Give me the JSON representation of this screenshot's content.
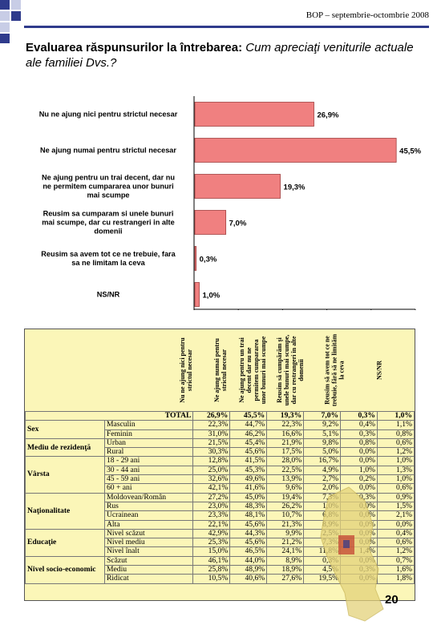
{
  "header": {
    "text": "BOP – septembrie-octombrie 2008"
  },
  "title": {
    "bold": "Evaluarea răspunsurilor la întrebarea:",
    "italic": " Cum apreciaţi veniturile actuale ale familiei Dvs.?"
  },
  "chart_data": {
    "type": "bar",
    "orientation": "horizontal",
    "categories": [
      "Nu ne ajung nici pentru strictul necesar",
      "Ne ajung numai pentru strictul necesar",
      "Ne ajung pentru un trai decent, dar nu ne permitem cumpararea unor bunuri mai scumpe",
      "Reusim sa cumparam si unele bunuri mai scumpe, dar cu restrangeri in alte domenii",
      "Reusim sa avem tot ce ne trebuie, fara sa ne limitam la ceva",
      "NS/NR"
    ],
    "values": [
      26.9,
      45.5,
      19.3,
      7.0,
      0.3,
      1.0
    ],
    "value_labels": [
      "26,9%",
      "45,5%",
      "19,3%",
      "7,0%",
      "0,3%",
      "1,0%"
    ],
    "xlim": [
      0,
      50
    ],
    "xticks": [
      "0%",
      "10%",
      "20%",
      "30%",
      "40%",
      "50%"
    ],
    "bar_color": "#f08080"
  },
  "category_lines": [
    [
      "Nu ne ajung nici pentru strictul necesar"
    ],
    [
      "Ne ajung numai pentru strictul necesar"
    ],
    [
      "Ne ajung pentru un trai decent, dar nu",
      "ne permitem cumpararea unor bunuri",
      "mai scumpe"
    ],
    [
      "Reusim sa cumparam si unele bunuri",
      "mai scumpe, dar cu restrangeri in alte",
      "domenii"
    ],
    [
      "Reusim sa avem tot ce ne trebuie, fara",
      "sa ne limitam la ceva"
    ],
    [
      "NS/NR"
    ]
  ],
  "table": {
    "columns": [
      "Nu ne ajung nici pentru strictul necesar",
      "Ne ajung numai pentru strictul necesar",
      "Ne ajung pentru un trai decent dar nu ne permitem cumpararea unor bunuri mai scumpe",
      "Reusim să cumpărăm şi unele bunuri mai scumpe, dar cu restrangeri în alte domenii",
      "Reusim să avem tot ce ne trebuie, fără să ne limităm la ceva",
      "NS/NR"
    ],
    "total_label": "TOTAL",
    "total": [
      "26,9%",
      "45,5%",
      "19,3%",
      "7,0%",
      "0,3%",
      "1,0%"
    ],
    "groups": [
      {
        "name": "Sex",
        "rows": [
          {
            "label": "Masculin",
            "values": [
              "22,3%",
              "44,7%",
              "22,3%",
              "9,2%",
              "0,4%",
              "1,1%"
            ]
          },
          {
            "label": "Feminin",
            "values": [
              "31,0%",
              "46,2%",
              "16,6%",
              "5,1%",
              "0,3%",
              "0,8%"
            ]
          }
        ]
      },
      {
        "name": "Mediu de rezidenţă",
        "rows": [
          {
            "label": "Urban",
            "values": [
              "21,5%",
              "45,4%",
              "21,9%",
              "9,8%",
              "0,8%",
              "0,6%"
            ]
          },
          {
            "label": "Rural",
            "values": [
              "30,3%",
              "45,6%",
              "17,5%",
              "5,0%",
              "0,0%",
              "1,2%"
            ]
          }
        ]
      },
      {
        "name": "Vârsta",
        "rows": [
          {
            "label": "18 - 29 ani",
            "values": [
              "12,8%",
              "41,5%",
              "28,0%",
              "16,7%",
              "0,0%",
              "1,0%"
            ]
          },
          {
            "label": "30 - 44 ani",
            "values": [
              "25,0%",
              "45,3%",
              "22,5%",
              "4,9%",
              "1,0%",
              "1,3%"
            ]
          },
          {
            "label": "45 - 59 ani",
            "values": [
              "32,6%",
              "49,6%",
              "13,9%",
              "2,7%",
              "0,2%",
              "1,0%"
            ]
          },
          {
            "label": "60 + ani",
            "values": [
              "42,1%",
              "41,6%",
              "9,6%",
              "2,0%",
              "0,0%",
              "0,6%"
            ]
          }
        ]
      },
      {
        "name": "Naţionalitate",
        "rows": [
          {
            "label": "Moldovean/Român",
            "values": [
              "27,2%",
              "45,0%",
              "19,4%",
              "7,3%",
              "0,3%",
              "0,9%"
            ]
          },
          {
            "label": "Rus",
            "values": [
              "23,0%",
              "48,3%",
              "26,2%",
              "1,0%",
              "0,0%",
              "1,5%"
            ]
          },
          {
            "label": "Ucrainean",
            "values": [
              "23,3%",
              "48,1%",
              "10,7%",
              "6,8%",
              "0,0%",
              "2,1%"
            ]
          },
          {
            "label": "Alta",
            "values": [
              "22,1%",
              "45,6%",
              "21,3%",
              "8,9%",
              "0,0%",
              "0,0%"
            ]
          }
        ]
      },
      {
        "name": "Educaţie",
        "rows": [
          {
            "label": "Nivel scăzut",
            "values": [
              "42,9%",
              "44,3%",
              "9,9%",
              "2,5%",
              "0,0%",
              "0,4%"
            ]
          },
          {
            "label": "Nivel mediu",
            "values": [
              "25,3%",
              "45,6%",
              "21,2%",
              "7,3%",
              "0,0%",
              "0,6%"
            ]
          },
          {
            "label": "Nivel înalt",
            "values": [
              "15,0%",
              "46,5%",
              "24,1%",
              "11,8%",
              "1,4%",
              "1,2%"
            ]
          }
        ]
      },
      {
        "name": "Nivel socio-economic",
        "rows": [
          {
            "label": "Scăzut",
            "values": [
              "46,1%",
              "44,0%",
              "8,9%",
              "0,3%",
              "0,0%",
              "0,7%"
            ]
          },
          {
            "label": "Mediu",
            "values": [
              "25,8%",
              "48,9%",
              "18,9%",
              "4,5%",
              "0,3%",
              "1,6%"
            ]
          },
          {
            "label": "Ridicat",
            "values": [
              "10,5%",
              "40,6%",
              "27,6%",
              "19,5%",
              "0,0%",
              "1,8%"
            ]
          }
        ]
      }
    ]
  },
  "page_number": "20",
  "colors": {
    "accent": "#2f3b8c",
    "bar": "#f08080",
    "table_bg": "#fbf6b8"
  }
}
